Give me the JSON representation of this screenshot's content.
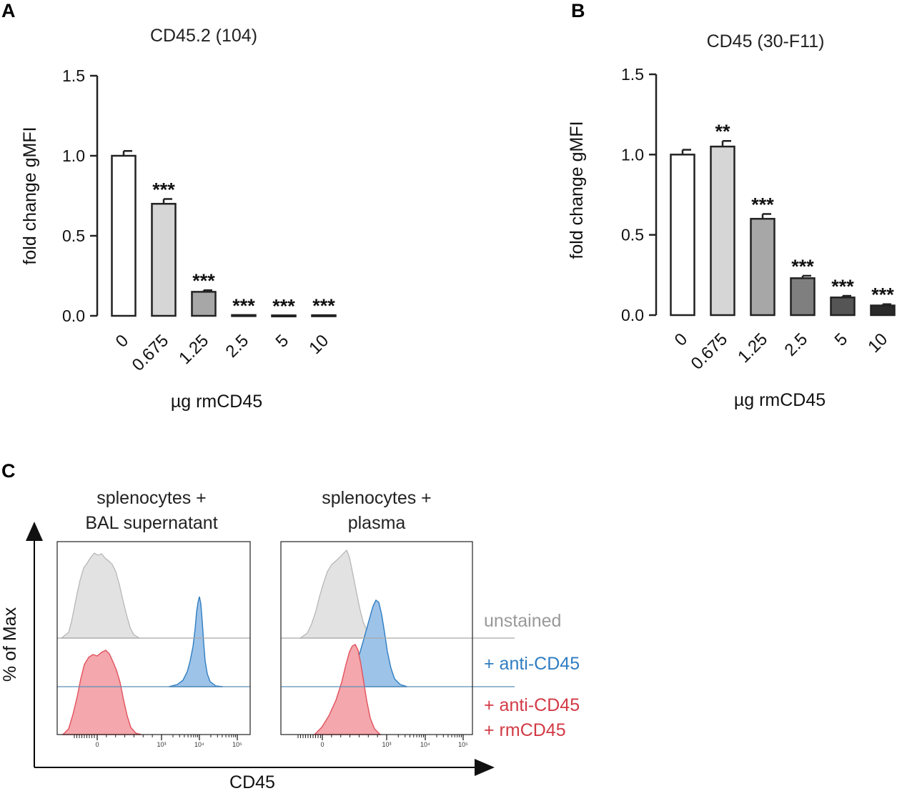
{
  "chart_data": [
    {
      "panel": "A",
      "type": "bar",
      "title": "CD45.2 (104)",
      "xlabel": "µg rmCD45",
      "ylabel": "fold change gMFI",
      "categories": [
        "0",
        "0.675",
        "1.25",
        "2.5",
        "5",
        "10"
      ],
      "values": [
        1.0,
        0.7,
        0.15,
        0.005,
        0.003,
        0.004
      ],
      "errors": [
        0.03,
        0.03,
        0.01,
        0.0,
        0.0,
        0.0
      ],
      "significance": [
        "",
        "***",
        "***",
        "***",
        "***",
        "***"
      ],
      "bar_colors": [
        "#ffffff",
        "#d6d6d6",
        "#a7a7a7",
        "#7f7f7f",
        "#555555",
        "#2a2a2a"
      ],
      "ylim": [
        0,
        1.5
      ],
      "yticks": [
        "0.0",
        "0.5",
        "1.0",
        "1.5"
      ]
    },
    {
      "panel": "B",
      "type": "bar",
      "title": "CD45 (30-F11)",
      "xlabel": "µg rmCD45",
      "ylabel": "fold change gMFI",
      "categories": [
        "0",
        "0.675",
        "1.25",
        "2.5",
        "5",
        "10"
      ],
      "values": [
        1.0,
        1.05,
        0.6,
        0.23,
        0.11,
        0.06
      ],
      "errors": [
        0.03,
        0.035,
        0.03,
        0.015,
        0.01,
        0.008
      ],
      "significance": [
        "",
        "**",
        "***",
        "***",
        "***",
        "***"
      ],
      "bar_colors": [
        "#ffffff",
        "#d6d6d6",
        "#a7a7a7",
        "#7f7f7f",
        "#555555",
        "#2a2a2a"
      ],
      "ylim": [
        0,
        1.5
      ],
      "yticks": [
        "0.0",
        "0.5",
        "1.0",
        "1.5"
      ]
    }
  ],
  "panel_c": {
    "letter": "C",
    "y_axis_label": "% of Max",
    "x_axis_label": "CD45",
    "plots": [
      {
        "title_line1": "splenocytes +",
        "title_line2": "BAL supernatant",
        "tick_labels": [
          "0",
          "10³",
          "10⁴",
          "10⁵"
        ],
        "upper_gray_peak_log10": 2.0,
        "upper_blue_peak_log10": 4.0,
        "lower_red_peak_log10": 2.0
      },
      {
        "title_line1": "splenocytes +",
        "title_line2": "plasma",
        "tick_labels": [
          "0",
          "10³",
          "10⁴",
          "10⁵"
        ],
        "upper_gray_peak_log10": 2.0,
        "upper_blue_peak_log10": 3.0,
        "lower_red_peak_log10": 2.5
      }
    ],
    "legend": [
      {
        "text": "unstained",
        "color": "#999999"
      },
      {
        "text": "+ anti-CD45",
        "color": "#2f7dc2"
      },
      {
        "text": "+ anti-CD45",
        "color": "#d23a45"
      },
      {
        "text": "+ rmCD45",
        "color": "#d23a45"
      }
    ],
    "colors": {
      "gray_fill": "#e2e2e2",
      "gray_line": "#b3b3b3",
      "blue_fill": "#9dc3e8",
      "blue_line": "#2f7dc2",
      "red_fill": "#f4a7ad",
      "red_line": "#e1515d"
    }
  },
  "panel_a_letter": "A",
  "panel_b_letter": "B"
}
